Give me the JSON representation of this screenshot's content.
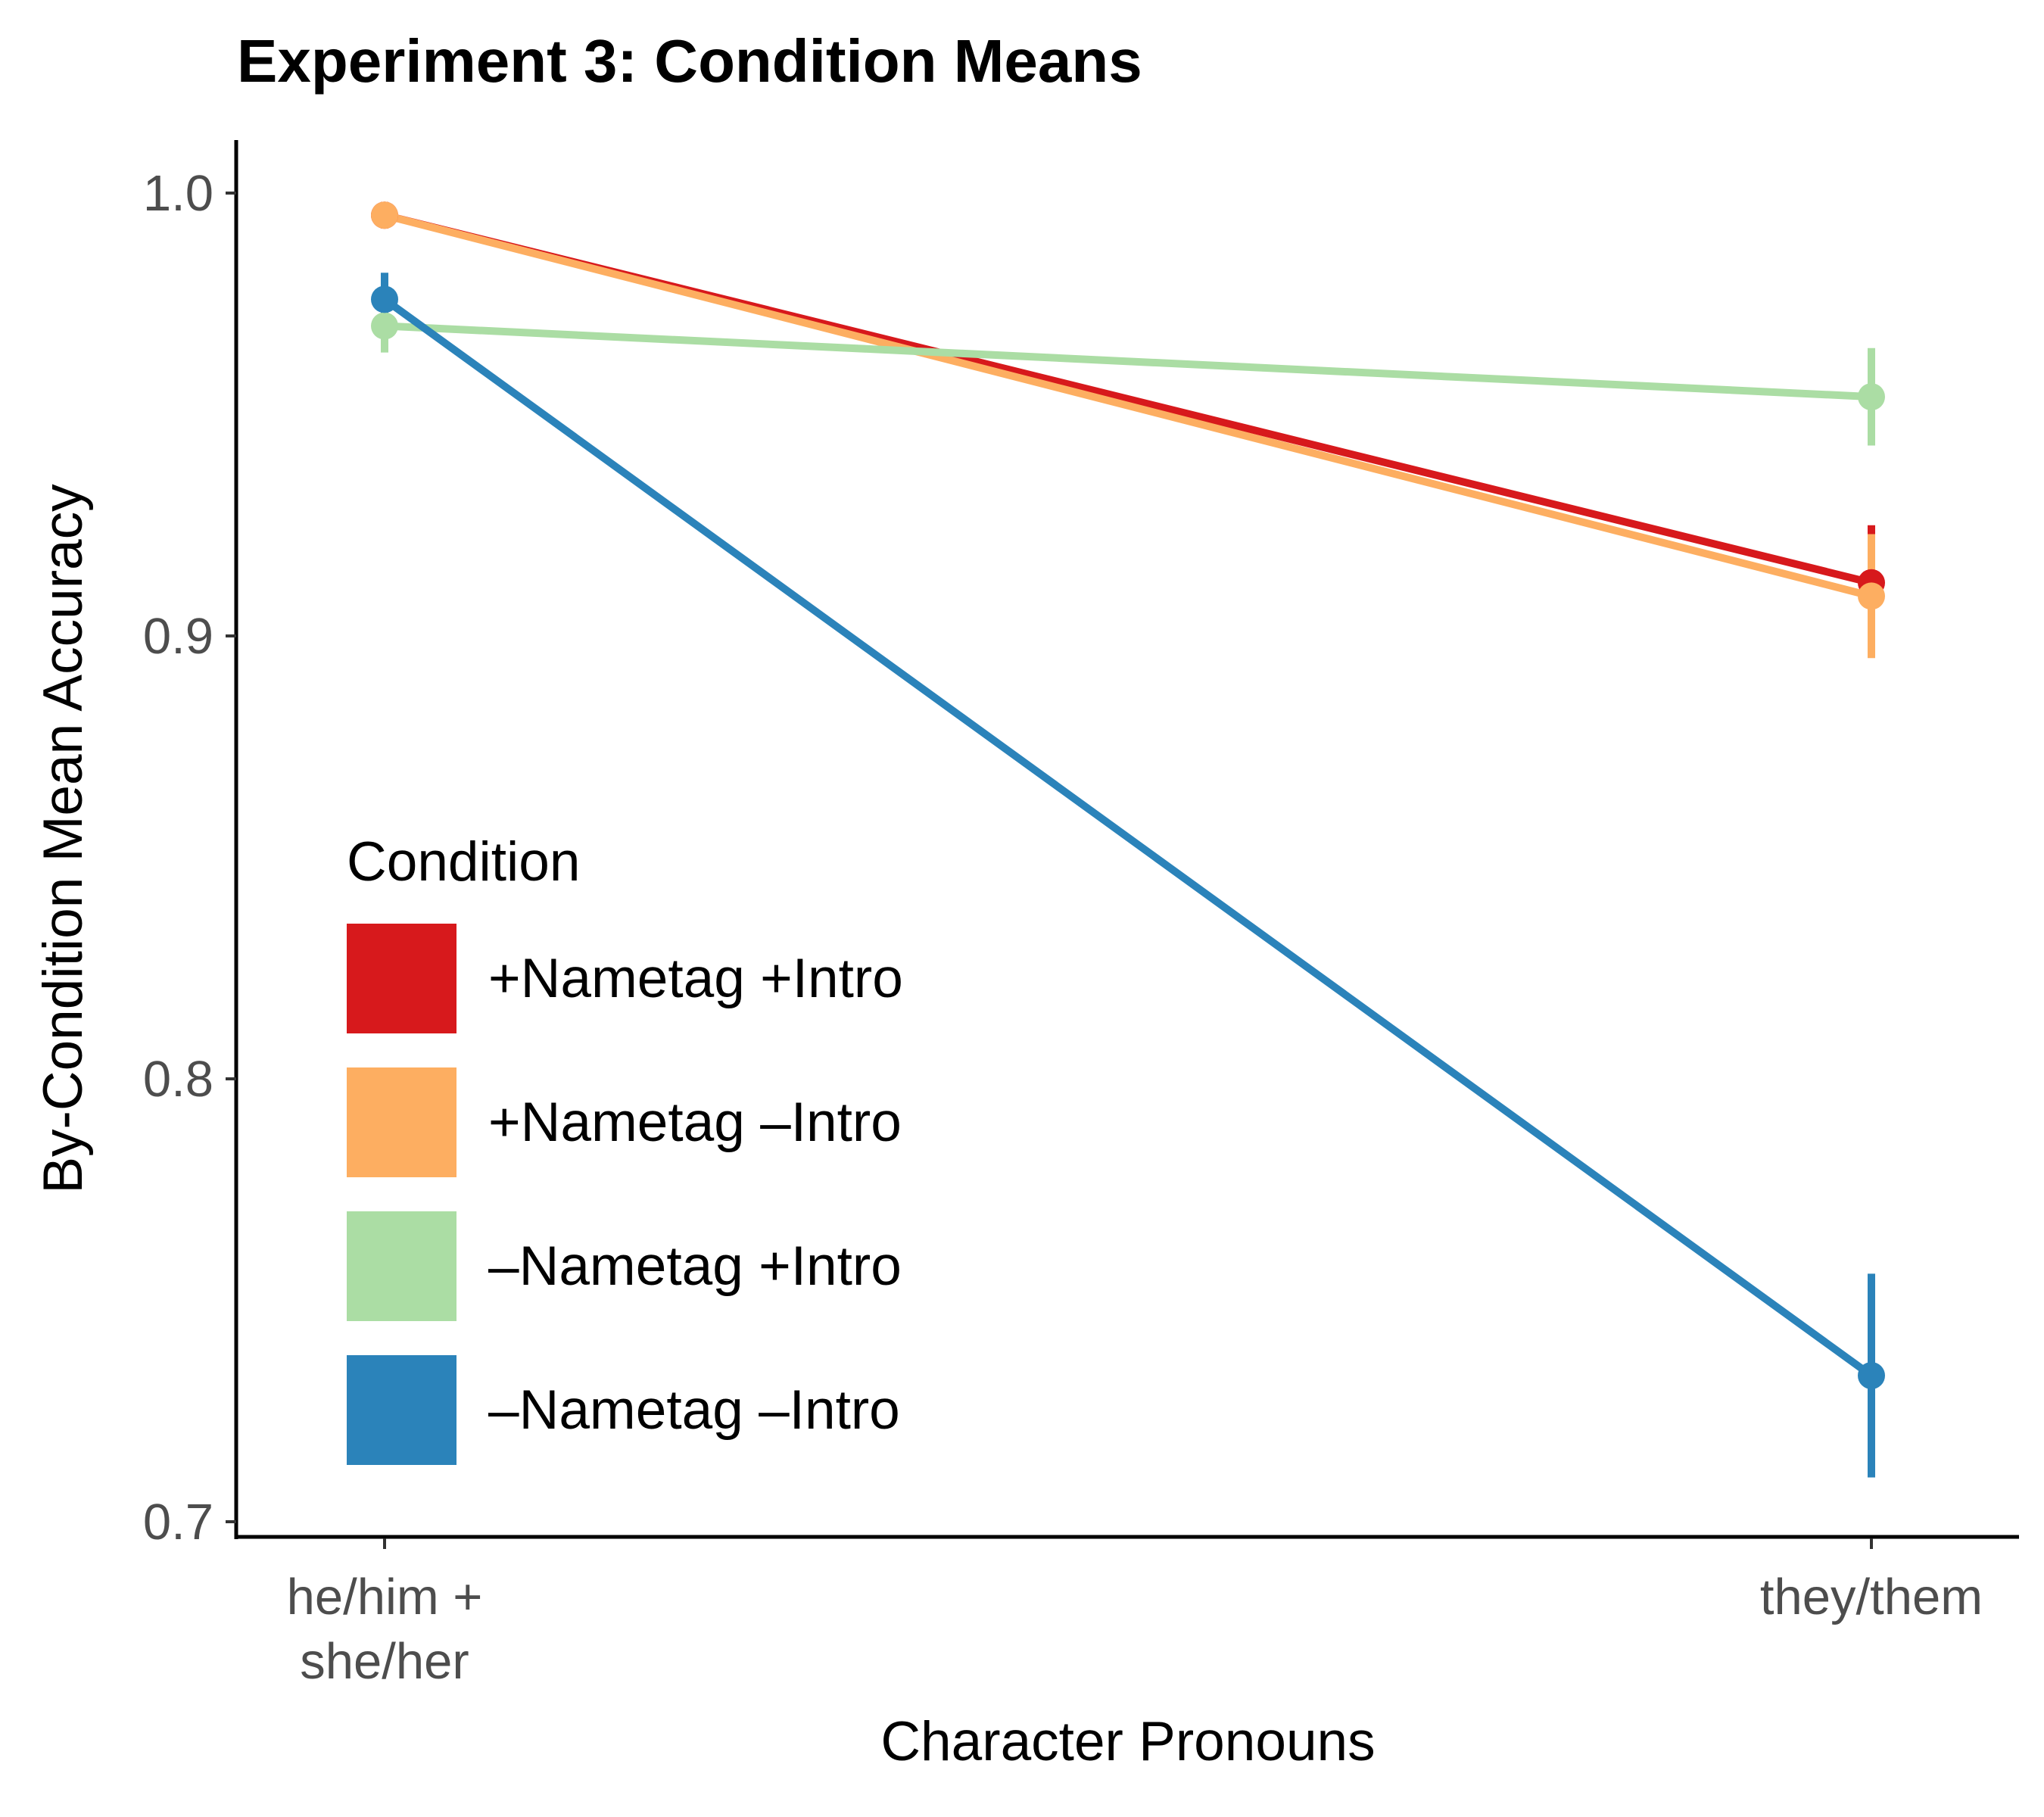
{
  "chart_data": {
    "type": "line",
    "title": "Experiment 3: Condition Means",
    "xlabel": "Character Pronouns",
    "ylabel": "By-Condition Mean Accuracy",
    "categories": [
      [
        "he/him +",
        "she/her"
      ],
      [
        "they/them"
      ]
    ],
    "yticks": [
      "0.7",
      "0.8",
      "0.9",
      "1.0"
    ],
    "ylim": [
      0.7,
      1.01
    ],
    "grid": false,
    "legend": {
      "title": "Condition",
      "placement": "bottom-left"
    },
    "series": [
      {
        "name": "+Nametag +Intro",
        "color": "#d7191c",
        "values": [
          0.995,
          0.912
        ],
        "ci_low": [
          0.992,
          0.9
        ],
        "ci_high": [
          0.998,
          0.925
        ]
      },
      {
        "name": "+Nametag –Intro",
        "color": "#fdae61",
        "values": [
          0.995,
          0.909
        ],
        "ci_low": [
          0.992,
          0.895
        ],
        "ci_high": [
          0.998,
          0.923
        ]
      },
      {
        "name": "–Nametag +Intro",
        "color": "#abdda4",
        "values": [
          0.97,
          0.954
        ],
        "ci_low": [
          0.964,
          0.943
        ],
        "ci_high": [
          0.976,
          0.965
        ]
      },
      {
        "name": "–Nametag –Intro",
        "color": "#2b83ba",
        "values": [
          0.976,
          0.733
        ],
        "ci_low": [
          0.97,
          0.71
        ],
        "ci_high": [
          0.982,
          0.756
        ]
      }
    ]
  }
}
